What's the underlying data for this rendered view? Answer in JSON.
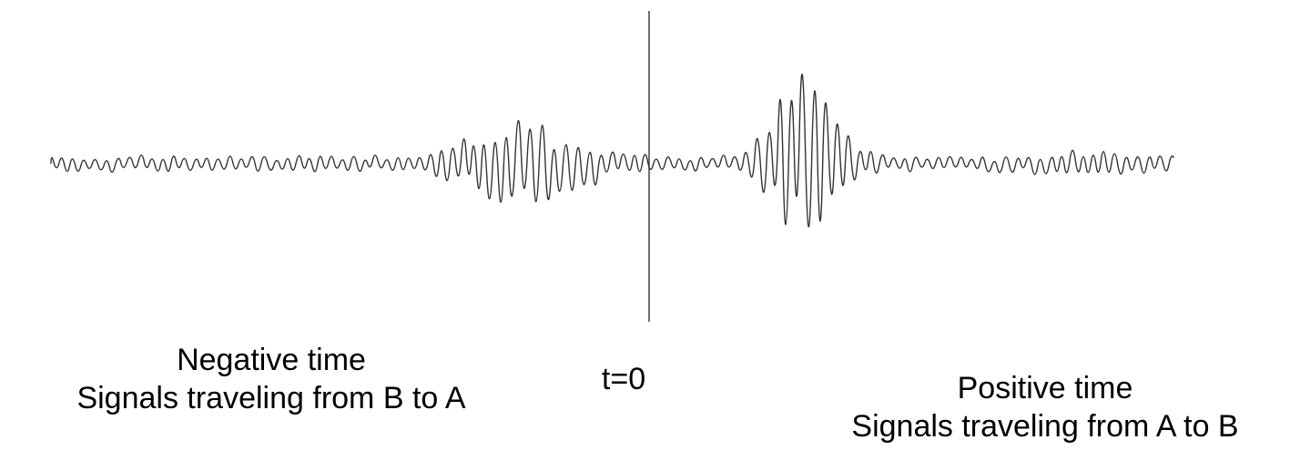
{
  "labels": {
    "negative_title": "Negative time",
    "negative_desc": "Signals traveling from B to A",
    "zero": "t=0",
    "positive_title": "Positive time",
    "positive_desc": "Signals traveling from A to B"
  },
  "colors": {
    "waveform": "#333333",
    "axis_line": "#333333",
    "text": "#000000"
  }
}
